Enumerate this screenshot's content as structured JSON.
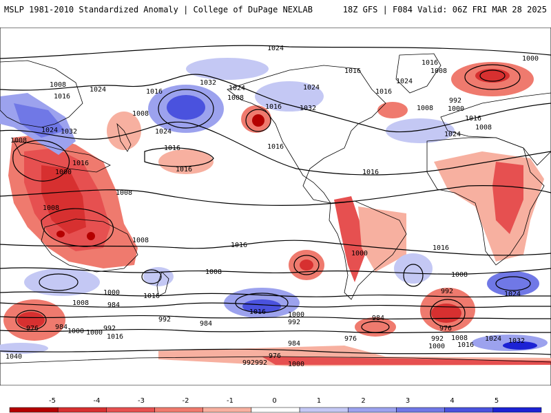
{
  "header": {
    "left_title": "MSLP 1981-2010 Standardized Anomaly | College of DuPage NEXLAB",
    "right_title": "18Z GFS | F084 Valid: 06Z FRI MAR 28 2025"
  },
  "colorbar": {
    "ticks": [
      "-5",
      "-4",
      "-3",
      "-2",
      "-1",
      "0",
      "1",
      "2",
      "3",
      "4",
      "5"
    ],
    "colors": [
      "#b40000",
      "#d73030",
      "#e65050",
      "#ef7a6e",
      "#f7b0a0",
      "#ffffff",
      "#c4c8f4",
      "#9ca2ee",
      "#7078e6",
      "#4a52de",
      "#1c22d4"
    ]
  },
  "isobar_labels": [
    {
      "text": "1024"
    },
    {
      "text": "1008"
    },
    {
      "text": "1016"
    },
    {
      "text": "1024"
    },
    {
      "text": "1016"
    },
    {
      "text": "1032"
    },
    {
      "text": "1024"
    },
    {
      "text": "1008"
    },
    {
      "text": "1016"
    },
    {
      "text": "1032"
    },
    {
      "text": "1024"
    },
    {
      "text": "1016"
    },
    {
      "text": "1016"
    },
    {
      "text": "1008"
    },
    {
      "text": "1024"
    },
    {
      "text": "1016"
    },
    {
      "text": "1000"
    },
    {
      "text": "992"
    },
    {
      "text": "1000"
    },
    {
      "text": "1008"
    },
    {
      "text": "1016"
    },
    {
      "text": "1008"
    },
    {
      "text": "1024"
    },
    {
      "text": "1032"
    },
    {
      "text": "1024"
    },
    {
      "text": "1008"
    },
    {
      "text": "1016"
    },
    {
      "text": "1000"
    },
    {
      "text": "1008"
    },
    {
      "text": "1008"
    },
    {
      "text": "1016"
    },
    {
      "text": "1016"
    },
    {
      "text": "1008"
    },
    {
      "text": "1016"
    },
    {
      "text": "1008"
    },
    {
      "text": "1016"
    },
    {
      "text": "1024"
    },
    {
      "text": "1008"
    },
    {
      "text": "1000"
    },
    {
      "text": "1016"
    },
    {
      "text": "1008"
    },
    {
      "text": "1016"
    },
    {
      "text": "1024"
    },
    {
      "text": "1008"
    },
    {
      "text": "1000"
    },
    {
      "text": "984"
    },
    {
      "text": "1016"
    },
    {
      "text": "992"
    },
    {
      "text": "992"
    },
    {
      "text": "984"
    },
    {
      "text": "1000"
    },
    {
      "text": "992"
    },
    {
      "text": "984"
    },
    {
      "text": "992"
    },
    {
      "text": "976"
    },
    {
      "text": "984"
    },
    {
      "text": "1000"
    },
    {
      "text": "992"
    },
    {
      "text": "1016"
    },
    {
      "text": "976"
    },
    {
      "text": "984"
    },
    {
      "text": "1000"
    },
    {
      "text": "1016"
    },
    {
      "text": "1040"
    },
    {
      "text": "976"
    },
    {
      "text": "992"
    },
    {
      "text": "1000"
    },
    {
      "text": "1008"
    },
    {
      "text": "1016"
    },
    {
      "text": "1024"
    },
    {
      "text": "1032"
    },
    {
      "text": "976"
    },
    {
      "text": "992"
    },
    {
      "text": "1000"
    }
  ]
}
